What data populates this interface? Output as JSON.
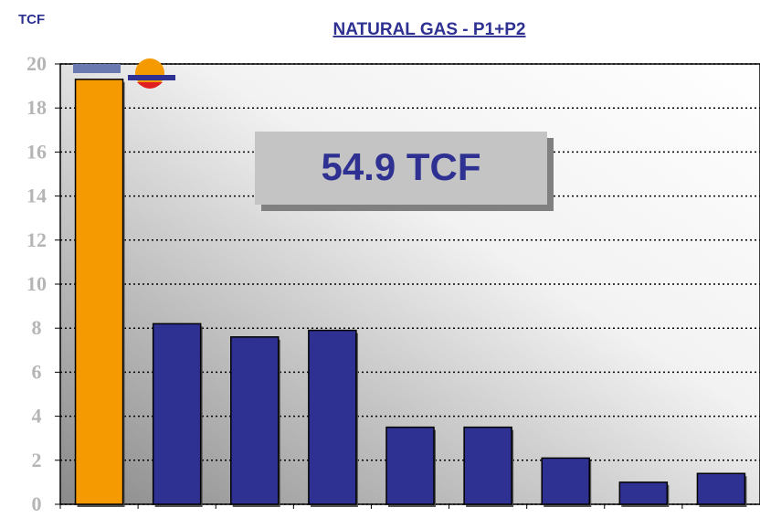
{
  "chart_data": {
    "type": "bar",
    "title": "NATURAL GAS - P1+P2",
    "y_label": "TCF",
    "annotation": "54.9 TCF",
    "categories": [
      null,
      null,
      null,
      null,
      null,
      null,
      null,
      null,
      null
    ],
    "values": [
      19.3,
      8.2,
      7.6,
      7.9,
      3.5,
      3.5,
      2.1,
      1.0,
      1.4
    ],
    "colors": [
      "#f59a00",
      "#2e3192",
      "#2e3192",
      "#2e3192",
      "#2e3192",
      "#2e3192",
      "#2e3192",
      "#2e3192",
      "#2e3192"
    ],
    "ylim": [
      0,
      20
    ],
    "yticks": [
      0,
      2,
      4,
      6,
      8,
      10,
      12,
      14,
      16,
      18,
      20
    ],
    "grid": true
  }
}
